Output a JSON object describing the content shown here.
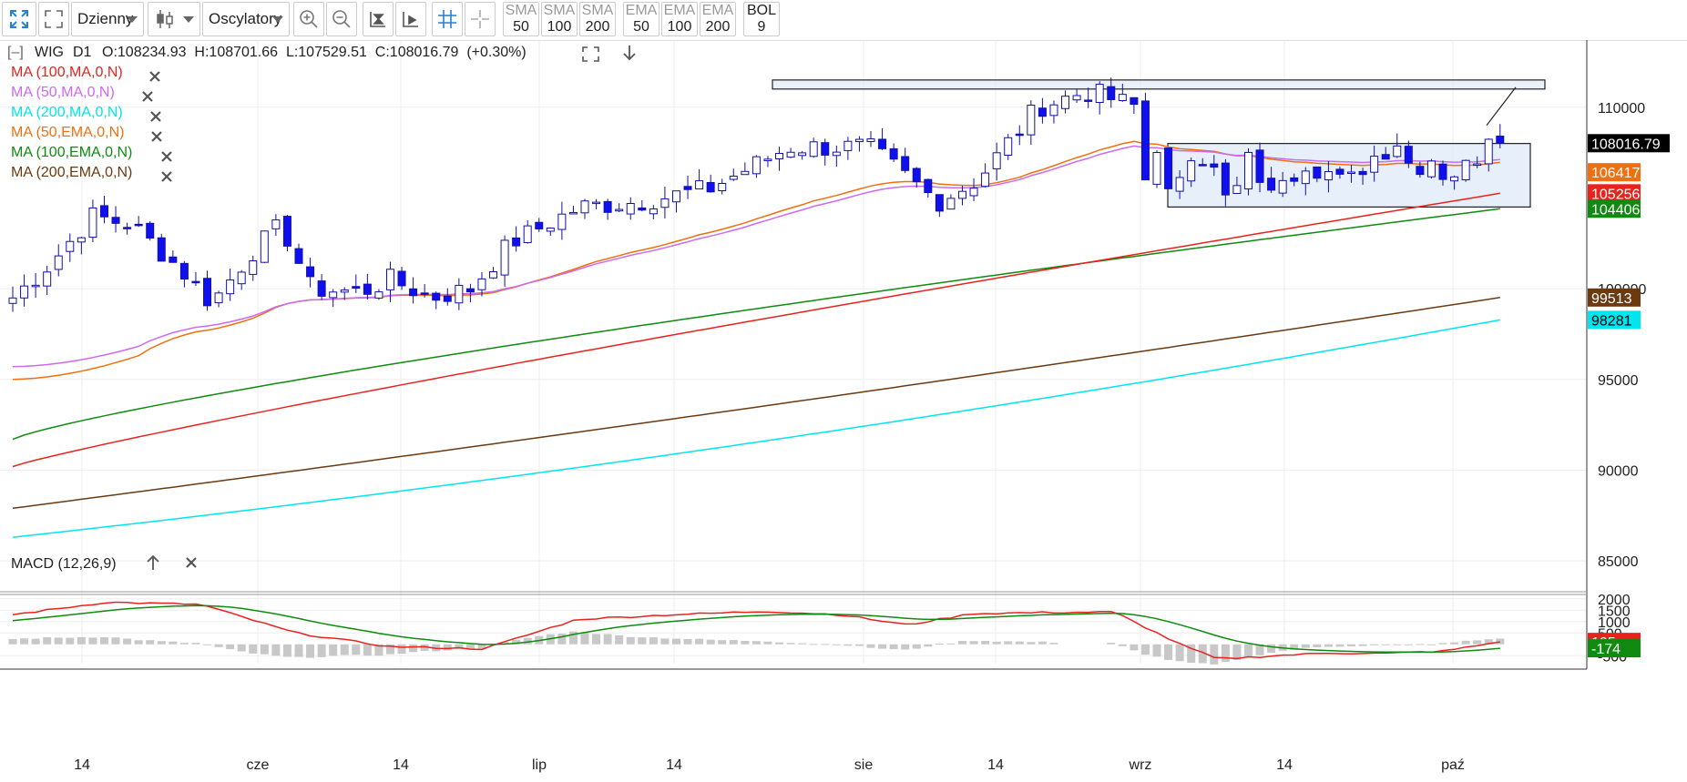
{
  "toolbar": {
    "period": "Dzienny",
    "oscillators": "Oscylatory",
    "indicators": [
      {
        "name": "SMA",
        "period": "50"
      },
      {
        "name": "SMA",
        "period": "100"
      },
      {
        "name": "SMA",
        "period": "200"
      },
      {
        "name": "EMA",
        "period": "50"
      },
      {
        "name": "EMA",
        "period": "100"
      },
      {
        "name": "EMA",
        "period": "200"
      },
      {
        "name": "BOL",
        "period": "9"
      }
    ]
  },
  "header": {
    "collapse": "[–]",
    "symbol": "WIG",
    "interval": "D1",
    "ohlc": "O:108234.93  H:108701.66  L:107529.51  C:108016.79  (+0.30%)"
  },
  "legend": [
    {
      "label": "MA (100,MA,0,N)",
      "color": "#e8231e"
    },
    {
      "label": "MA (50,MA,0,N)",
      "color": "#cc6af0"
    },
    {
      "label": "MA (200,MA,0,N)",
      "color": "#00e5ee"
    },
    {
      "label": "MA (50,EMA,0,N)",
      "color": "#f07010"
    },
    {
      "label": "MA (100,EMA,0,N)",
      "color": "#108a10"
    },
    {
      "label": "MA (200,EMA,0,N)",
      "color": "#6b3a10"
    }
  ],
  "macd_label": "MACD (12,26,9)",
  "chart_data": {
    "type": "candlestick",
    "x_labels": [
      "14",
      "cze",
      "14",
      "lip",
      "14",
      "sie",
      "14",
      "wrz",
      "14",
      "paź"
    ],
    "price_axis": {
      "ticks": [
        "110000",
        "108016.79",
        "106417",
        "105256",
        "104406",
        "100000",
        "99513",
        "98281",
        "95000",
        "90000",
        "85000"
      ],
      "ylim": [
        83300,
        113700
      ]
    },
    "macd_axis": {
      "ticks": [
        "2000",
        "1500",
        "1000",
        "500",
        "105",
        "-174",
        "-500"
      ],
      "ylim": [
        -850,
        2150
      ]
    },
    "value_tags": [
      {
        "label": "108016.79",
        "value": 108016.79,
        "color": "#000000"
      },
      {
        "label": "106417",
        "value": 106417,
        "color": "#f07010"
      },
      {
        "label": "105256",
        "value": 105256,
        "color": "#e8231e"
      },
      {
        "label": "104406",
        "value": 104406,
        "color": "#108a10"
      },
      {
        "label": "99513",
        "value": 99513,
        "color": "#6b3a10"
      },
      {
        "label": "98281",
        "value": 98281,
        "color": "#00e5ee"
      },
      {
        "label": "105",
        "value": 105,
        "color": "#e8231e",
        "pane": "macd"
      },
      {
        "label": "-174",
        "value": -174,
        "color": "#108a10",
        "pane": "macd"
      }
    ],
    "colors": {
      "up": "#ffffff",
      "down": "#1010ee",
      "wick": "#1010aa",
      "hist": "#c8c8c8",
      "macd": "#e8231e",
      "signal": "#108a10"
    }
  }
}
